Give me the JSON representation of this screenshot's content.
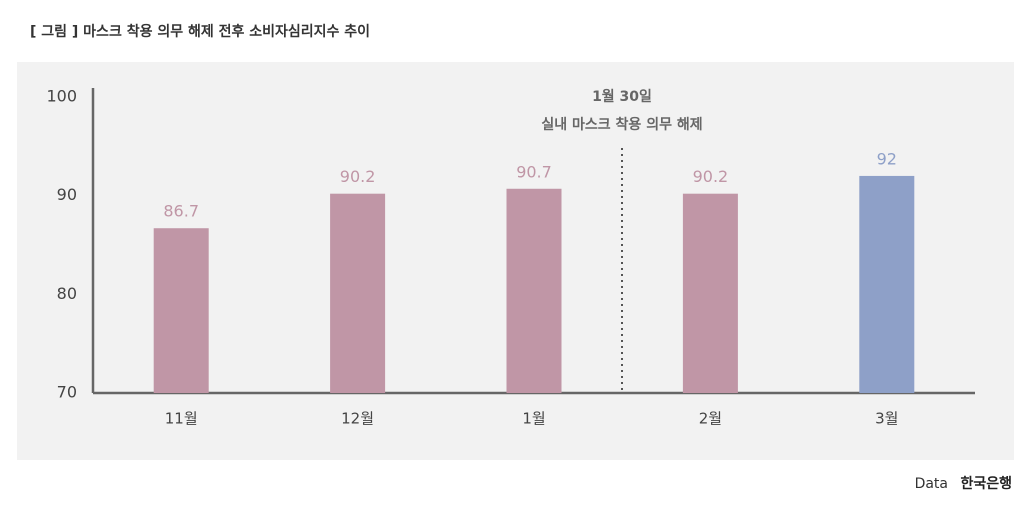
{
  "chart_data": {
    "type": "bar",
    "title": "[ 그림 ] 마스크 착용 의무 해제 전후 소비자심리지수 추이",
    "categories": [
      "11월",
      "12월",
      "1월",
      "2월",
      "3월"
    ],
    "values": [
      86.7,
      90.2,
      90.7,
      90.2,
      92
    ],
    "colors": [
      "#c096a6",
      "#c096a6",
      "#c096a6",
      "#c096a6",
      "#8ea0c8"
    ],
    "ylim": [
      70,
      100
    ],
    "yticks": [
      70,
      80,
      90,
      100
    ],
    "annotation": {
      "lines": [
        "1월 30일",
        "실내 마스크 착용 의무 해제"
      ]
    },
    "source_prefix": "Data",
    "source": "한국은행"
  }
}
